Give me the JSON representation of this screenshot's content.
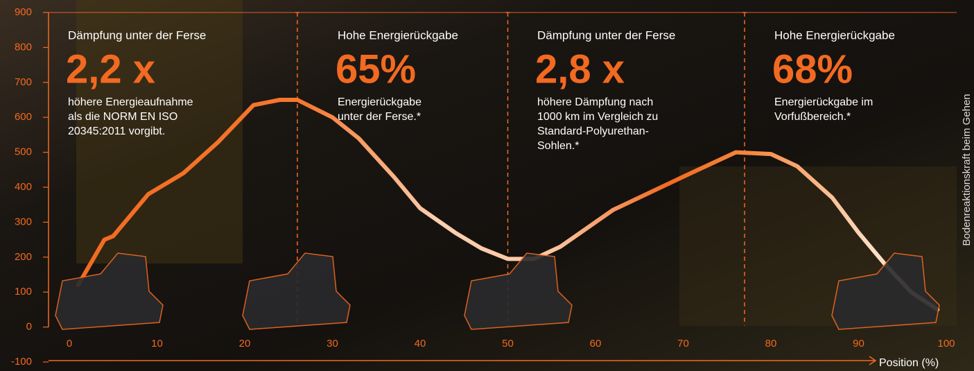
{
  "chart_data": {
    "type": "line",
    "x_label": "Position (%)",
    "y_label": "Bodenreaktionskraft beim Gehen",
    "x": [
      1,
      4,
      5,
      9,
      13,
      17,
      21,
      24,
      26,
      30,
      33,
      37,
      40,
      44,
      47,
      50,
      53,
      56,
      62,
      70,
      76,
      80,
      83,
      87,
      90,
      93,
      96,
      99
    ],
    "values": [
      120,
      250,
      260,
      380,
      440,
      530,
      635,
      650,
      650,
      600,
      540,
      430,
      340,
      270,
      225,
      195,
      195,
      230,
      335,
      430,
      500,
      495,
      460,
      370,
      270,
      180,
      100,
      50
    ],
    "color": "#f26a21",
    "xlim": [
      0,
      100
    ],
    "xticks": [
      0,
      10,
      20,
      30,
      40,
      50,
      60,
      70,
      80,
      90,
      100
    ],
    "ylim": [
      -100,
      900
    ],
    "yticks": [
      -100,
      0,
      100,
      200,
      300,
      400,
      500,
      600,
      700,
      800,
      {
        "value": 900,
        "label": "900"
      }
    ],
    "dividers": [
      26,
      50,
      77
    ],
    "panels": [
      {
        "heading": "Dämpfung unter der Ferse",
        "big": "2,2 x",
        "lines": [
          "höhere Energieaufnahme",
          "als die NORM EN ISO",
          "20345:2011 vorgibt."
        ]
      },
      {
        "heading": "Hohe Energierückgabe",
        "big": "65%",
        "lines": [
          "Energierückgabe",
          "unter der Ferse.*"
        ]
      },
      {
        "heading": "Dämpfung unter der Ferse",
        "big": "2,8 x",
        "lines": [
          "höhere Dämpfung nach",
          "1000 km im Vergleich zu",
          "Standard-Polyurethan-",
          "Sohlen.*"
        ]
      },
      {
        "heading": "Hohe Energierückgabe",
        "big": "68%",
        "lines": [
          "Energierückgabe im",
          "Vorfußbereich.*"
        ]
      }
    ]
  }
}
